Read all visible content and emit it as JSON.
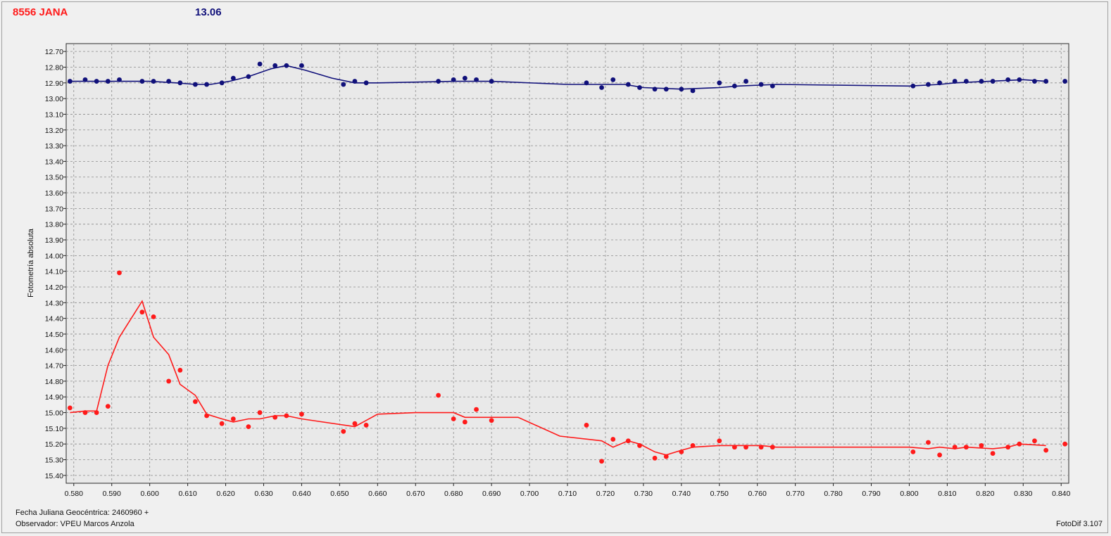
{
  "header": {
    "star_label": "8556 JANA",
    "comparison_label": "13.06"
  },
  "footer": {
    "date_label": "Fecha Juliana Geocéntrica: 2460960 +",
    "observer_label": "Observador: VPEU Marcos Anzola",
    "version_label": "FotoDif 3.107"
  },
  "colors": {
    "variable": "#ff1a1a",
    "comparison": "#10107a",
    "grid": "#8a8a8a",
    "plot_bg": "#e9e9e9"
  },
  "chart_data": {
    "type": "scatter",
    "title": "",
    "xlabel": "",
    "ylabel": "Fotometría absoluta",
    "xlim": [
      0.578,
      0.842
    ],
    "ylim": [
      12.65,
      15.45
    ],
    "y_inverted": true,
    "grid": true,
    "x_ticks": [
      "0.580",
      "0.590",
      "0.600",
      "0.610",
      "0.620",
      "0.630",
      "0.640",
      "0.650",
      "0.660",
      "0.670",
      "0.680",
      "0.690",
      "0.700",
      "0.710",
      "0.720",
      "0.730",
      "0.740",
      "0.750",
      "0.760",
      "0.770",
      "0.780",
      "0.790",
      "0.800",
      "0.810",
      "0.820",
      "0.830",
      "0.840"
    ],
    "y_ticks": [
      "12.70",
      "12.80",
      "12.90",
      "13.00",
      "13.10",
      "13.20",
      "13.30",
      "13.40",
      "13.50",
      "13.60",
      "13.70",
      "13.80",
      "13.90",
      "14.00",
      "14.10",
      "14.20",
      "14.30",
      "14.40",
      "14.50",
      "14.60",
      "14.70",
      "14.80",
      "14.90",
      "15.00",
      "15.10",
      "15.20",
      "15.30",
      "15.40"
    ],
    "series": [
      {
        "color": "#10107a",
        "points": [
          [
            0.579,
            12.89
          ],
          [
            0.583,
            12.88
          ],
          [
            0.586,
            12.89
          ],
          [
            0.589,
            12.89
          ],
          [
            0.592,
            12.88
          ],
          [
            0.598,
            12.89
          ],
          [
            0.601,
            12.89
          ],
          [
            0.605,
            12.89
          ],
          [
            0.608,
            12.9
          ],
          [
            0.612,
            12.91
          ],
          [
            0.615,
            12.91
          ],
          [
            0.619,
            12.9
          ],
          [
            0.622,
            12.87
          ],
          [
            0.626,
            12.86
          ],
          [
            0.629,
            12.78
          ],
          [
            0.633,
            12.79
          ],
          [
            0.636,
            12.79
          ],
          [
            0.64,
            12.79
          ],
          [
            0.651,
            12.91
          ],
          [
            0.654,
            12.89
          ],
          [
            0.657,
            12.9
          ],
          [
            0.676,
            12.89
          ],
          [
            0.68,
            12.88
          ],
          [
            0.683,
            12.87
          ],
          [
            0.686,
            12.88
          ],
          [
            0.69,
            12.89
          ],
          [
            0.715,
            12.9
          ],
          [
            0.719,
            12.93
          ],
          [
            0.722,
            12.88
          ],
          [
            0.726,
            12.91
          ],
          [
            0.729,
            12.93
          ],
          [
            0.733,
            12.94
          ],
          [
            0.736,
            12.94
          ],
          [
            0.74,
            12.94
          ],
          [
            0.743,
            12.95
          ],
          [
            0.75,
            12.9
          ],
          [
            0.754,
            12.92
          ],
          [
            0.757,
            12.89
          ],
          [
            0.761,
            12.91
          ],
          [
            0.764,
            12.92
          ],
          [
            0.801,
            12.92
          ],
          [
            0.805,
            12.91
          ],
          [
            0.808,
            12.9
          ],
          [
            0.812,
            12.89
          ],
          [
            0.815,
            12.89
          ],
          [
            0.819,
            12.89
          ],
          [
            0.822,
            12.89
          ],
          [
            0.826,
            12.88
          ],
          [
            0.829,
            12.88
          ],
          [
            0.833,
            12.89
          ],
          [
            0.836,
            12.89
          ],
          [
            0.841,
            12.89
          ]
        ],
        "trend": [
          [
            0.579,
            12.89
          ],
          [
            0.59,
            12.89
          ],
          [
            0.6,
            12.89
          ],
          [
            0.607,
            12.9
          ],
          [
            0.612,
            12.91
          ],
          [
            0.616,
            12.91
          ],
          [
            0.621,
            12.89
          ],
          [
            0.626,
            12.86
          ],
          [
            0.632,
            12.81
          ],
          [
            0.636,
            12.79
          ],
          [
            0.641,
            12.82
          ],
          [
            0.648,
            12.87
          ],
          [
            0.654,
            12.9
          ],
          [
            0.66,
            12.9
          ],
          [
            0.68,
            12.89
          ],
          [
            0.69,
            12.89
          ],
          [
            0.71,
            12.91
          ],
          [
            0.725,
            12.91
          ],
          [
            0.73,
            12.93
          ],
          [
            0.74,
            12.94
          ],
          [
            0.75,
            12.93
          ],
          [
            0.755,
            12.92
          ],
          [
            0.765,
            12.91
          ],
          [
            0.8,
            12.92
          ],
          [
            0.808,
            12.91
          ],
          [
            0.812,
            12.9
          ],
          [
            0.83,
            12.88
          ],
          [
            0.836,
            12.89
          ]
        ]
      },
      {
        "color": "#ff1a1a",
        "points": [
          [
            0.579,
            14.97
          ],
          [
            0.583,
            15.0
          ],
          [
            0.586,
            15.0
          ],
          [
            0.589,
            14.96
          ],
          [
            0.592,
            14.11
          ],
          [
            0.598,
            14.36
          ],
          [
            0.601,
            14.39
          ],
          [
            0.605,
            14.8
          ],
          [
            0.608,
            14.73
          ],
          [
            0.612,
            14.93
          ],
          [
            0.615,
            15.02
          ],
          [
            0.619,
            15.07
          ],
          [
            0.622,
            15.04
          ],
          [
            0.626,
            15.09
          ],
          [
            0.629,
            15.0
          ],
          [
            0.633,
            15.03
          ],
          [
            0.636,
            15.02
          ],
          [
            0.64,
            15.01
          ],
          [
            0.651,
            15.12
          ],
          [
            0.654,
            15.07
          ],
          [
            0.657,
            15.08
          ],
          [
            0.676,
            14.89
          ],
          [
            0.68,
            15.04
          ],
          [
            0.683,
            15.06
          ],
          [
            0.686,
            14.98
          ],
          [
            0.69,
            15.05
          ],
          [
            0.715,
            15.08
          ],
          [
            0.719,
            15.31
          ],
          [
            0.722,
            15.17
          ],
          [
            0.726,
            15.18
          ],
          [
            0.729,
            15.21
          ],
          [
            0.733,
            15.29
          ],
          [
            0.736,
            15.28
          ],
          [
            0.74,
            15.25
          ],
          [
            0.743,
            15.21
          ],
          [
            0.75,
            15.18
          ],
          [
            0.754,
            15.22
          ],
          [
            0.757,
            15.22
          ],
          [
            0.761,
            15.22
          ],
          [
            0.764,
            15.22
          ],
          [
            0.801,
            15.25
          ],
          [
            0.805,
            15.19
          ],
          [
            0.808,
            15.27
          ],
          [
            0.812,
            15.22
          ],
          [
            0.815,
            15.22
          ],
          [
            0.819,
            15.21
          ],
          [
            0.822,
            15.26
          ],
          [
            0.826,
            15.22
          ],
          [
            0.829,
            15.2
          ],
          [
            0.833,
            15.18
          ],
          [
            0.836,
            15.24
          ],
          [
            0.841,
            15.2
          ]
        ],
        "trend": [
          [
            0.579,
            15.0
          ],
          [
            0.583,
            14.99
          ],
          [
            0.586,
            14.99
          ],
          [
            0.589,
            14.7
          ],
          [
            0.592,
            14.52
          ],
          [
            0.598,
            14.29
          ],
          [
            0.601,
            14.52
          ],
          [
            0.605,
            14.63
          ],
          [
            0.608,
            14.82
          ],
          [
            0.612,
            14.89
          ],
          [
            0.615,
            15.01
          ],
          [
            0.619,
            15.04
          ],
          [
            0.622,
            15.06
          ],
          [
            0.626,
            15.04
          ],
          [
            0.629,
            15.04
          ],
          [
            0.633,
            15.02
          ],
          [
            0.636,
            15.02
          ],
          [
            0.64,
            15.04
          ],
          [
            0.654,
            15.09
          ],
          [
            0.657,
            15.05
          ],
          [
            0.66,
            15.01
          ],
          [
            0.67,
            15.0
          ],
          [
            0.68,
            15.0
          ],
          [
            0.683,
            15.03
          ],
          [
            0.69,
            15.03
          ],
          [
            0.697,
            15.03
          ],
          [
            0.708,
            15.15
          ],
          [
            0.719,
            15.18
          ],
          [
            0.722,
            15.22
          ],
          [
            0.726,
            15.18
          ],
          [
            0.729,
            15.2
          ],
          [
            0.733,
            15.25
          ],
          [
            0.736,
            15.27
          ],
          [
            0.74,
            15.24
          ],
          [
            0.743,
            15.22
          ],
          [
            0.75,
            15.21
          ],
          [
            0.761,
            15.21
          ],
          [
            0.765,
            15.22
          ],
          [
            0.8,
            15.22
          ],
          [
            0.805,
            15.23
          ],
          [
            0.808,
            15.22
          ],
          [
            0.812,
            15.23
          ],
          [
            0.815,
            15.22
          ],
          [
            0.822,
            15.23
          ],
          [
            0.826,
            15.22
          ],
          [
            0.829,
            15.2
          ],
          [
            0.836,
            15.21
          ]
        ]
      }
    ]
  }
}
